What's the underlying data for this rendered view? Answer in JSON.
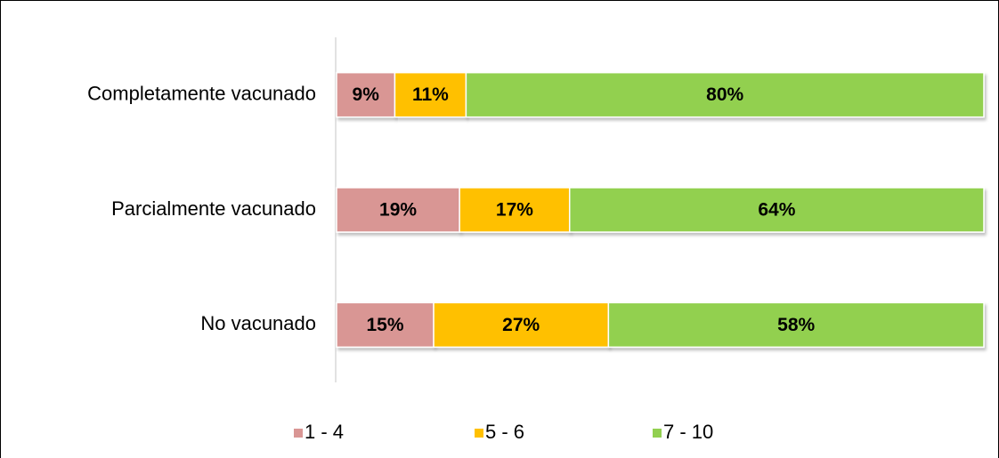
{
  "chart_data": {
    "type": "stacked-bar-horizontal",
    "categories": [
      "Completamente vacunado",
      "Parcialmente vacunado",
      "No vacunado"
    ],
    "series": [
      {
        "name": "1 - 4",
        "color": "#d99694",
        "values": [
          9,
          19,
          15
        ],
        "value_labels": [
          "9%",
          "19%",
          "15%"
        ]
      },
      {
        "name": "5 - 6",
        "color": "#ffc000",
        "values": [
          11,
          17,
          27
        ],
        "value_labels": [
          "11%",
          "17%",
          "27%"
        ]
      },
      {
        "name": "7 - 10",
        "color": "#92d050",
        "values": [
          80,
          64,
          58
        ],
        "value_labels": [
          "80%",
          "64%",
          "58%"
        ]
      }
    ],
    "xlim": [
      0,
      100
    ],
    "legend": "bottom"
  }
}
